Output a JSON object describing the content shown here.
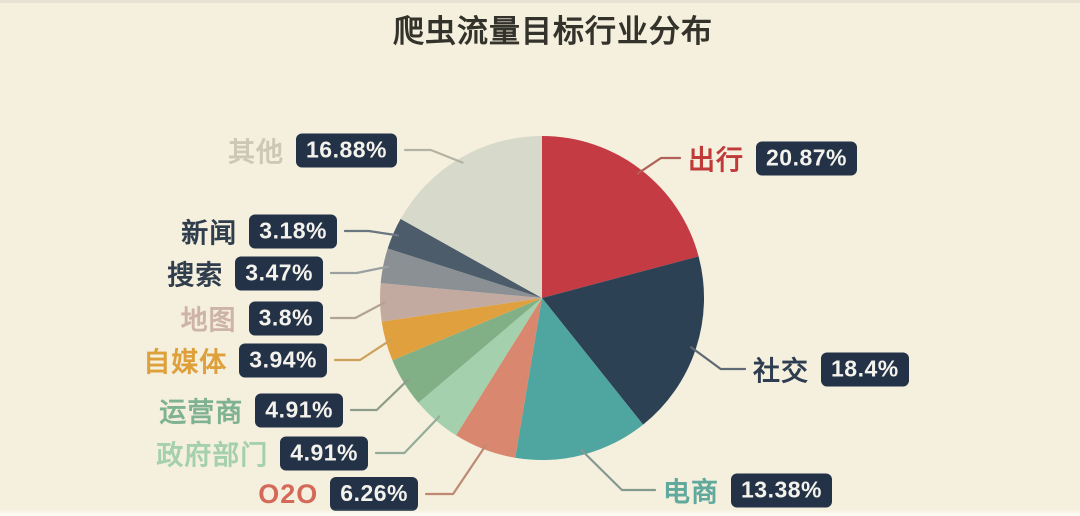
{
  "title": "爬虫流量目标行业分布",
  "background_color": "#f5efdd",
  "badge": {
    "bg": "#233246",
    "text_color": "#f4f2ec"
  },
  "chart_data": {
    "type": "pie",
    "title": "爬虫流量目标行业分布",
    "unit": "percent",
    "start_angle_deg": 0,
    "direction": "clockwise",
    "legend_position": "callout-labels",
    "segments": [
      {
        "label": "出行",
        "value": 20.87,
        "display": "20.87%",
        "color": "#c43b43",
        "label_color": "#bf3a39",
        "line_color": "#b06055"
      },
      {
        "label": "社交",
        "value": 18.4,
        "display": "18.4%",
        "color": "#2d4154",
        "label_color": "#2e3e50",
        "line_color": "#5d6a74"
      },
      {
        "label": "电商",
        "value": 13.38,
        "display": "13.38%",
        "color": "#4fa5a0",
        "label_color": "#61a89d",
        "line_color": "#85988f"
      },
      {
        "label": "O2O",
        "value": 6.26,
        "display": "6.26%",
        "color": "#d9876e",
        "label_color": "#d4695a",
        "line_color": "#bf8a72"
      },
      {
        "label": "政府部门",
        "value": 4.91,
        "display": "4.91%",
        "color": "#a5d0ad",
        "label_color": "#a5d0af",
        "line_color": "#93ac97"
      },
      {
        "label": "运营商",
        "value": 4.91,
        "display": "4.91%",
        "color": "#82b086",
        "label_color": "#7fb292",
        "line_color": "#8d9c8a"
      },
      {
        "label": "自媒体",
        "value": 3.94,
        "display": "3.94%",
        "color": "#e0a03e",
        "label_color": "#dda03b",
        "line_color": "#cda05a"
      },
      {
        "label": "地图",
        "value": 3.8,
        "display": "3.8%",
        "color": "#c3aaa1",
        "label_color": "#cdb3a8",
        "line_color": "#b3a298"
      },
      {
        "label": "搜索",
        "value": 3.47,
        "display": "3.47%",
        "color": "#8a9093",
        "label_color": "#2f3d4d",
        "line_color": "#9aa0a0"
      },
      {
        "label": "新闻",
        "value": 3.18,
        "display": "3.18%",
        "color": "#4d5c6a",
        "label_color": "#2f3d4d",
        "line_color": "#6a7680"
      },
      {
        "label": "其他",
        "value": 16.88,
        "display": "16.88%",
        "color": "#d7d9ca",
        "label_color": "#cbc8b6",
        "line_color": "#b4b2a4"
      }
    ]
  }
}
